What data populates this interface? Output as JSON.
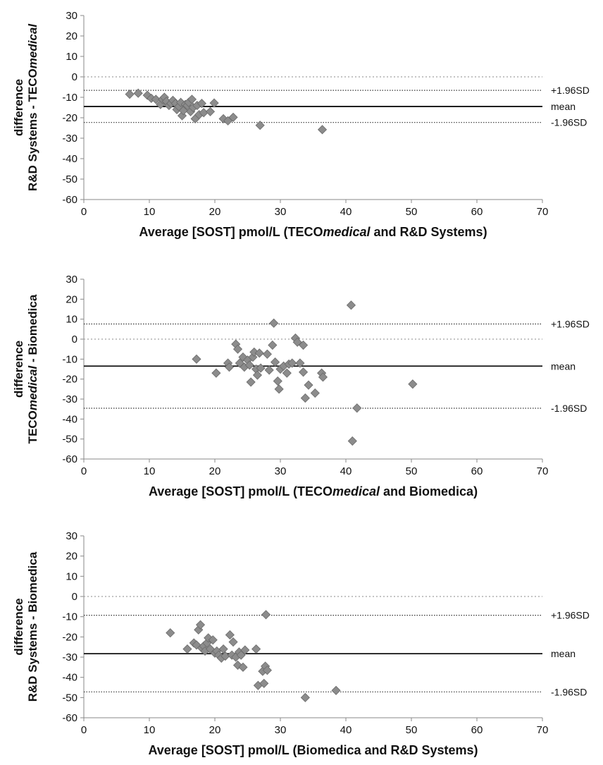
{
  "chart_data": [
    {
      "type": "scatter",
      "xlabel": {
        "runs": [
          {
            "text": "Average [SOST] pmol/L (TECO",
            "italic": false
          },
          {
            "text": "medical",
            "italic": true
          },
          {
            "text": " and R&D Systems)",
            "italic": false
          }
        ]
      },
      "ylabel_line1": "difference",
      "ylabel_line2": {
        "runs": [
          {
            "text": "R&D Systems - TECO",
            "italic": false
          },
          {
            "text": "medical",
            "italic": true
          }
        ]
      },
      "xlim": [
        0,
        70
      ],
      "ylim": [
        -60,
        30
      ],
      "xticks": [
        0,
        10,
        20,
        30,
        40,
        50,
        60,
        70
      ],
      "yticks": [
        -60,
        -50,
        -40,
        -30,
        -20,
        -10,
        0,
        10,
        20,
        30
      ],
      "marker_color": "#8c8c8c",
      "lines": [
        {
          "label": "",
          "y": 0,
          "style": "zero",
          "color": "#b0b0b0"
        },
        {
          "label": "+1.96SD",
          "y": -6.6,
          "style": "dotted",
          "color": "#333333"
        },
        {
          "label": "mean",
          "y": -14.5,
          "style": "solid",
          "color": "#111111"
        },
        {
          "label": "-1.96SD",
          "y": -22.3,
          "style": "dotted",
          "color": "#333333"
        }
      ],
      "points": [
        {
          "x": 7.0,
          "y": -8.5
        },
        {
          "x": 8.3,
          "y": -8.0
        },
        {
          "x": 9.7,
          "y": -9.0
        },
        {
          "x": 10.3,
          "y": -10.5
        },
        {
          "x": 11.0,
          "y": -11.0
        },
        {
          "x": 11.7,
          "y": -13.5
        },
        {
          "x": 12.0,
          "y": -11.0
        },
        {
          "x": 12.3,
          "y": -10.0
        },
        {
          "x": 12.6,
          "y": -12.0
        },
        {
          "x": 13.0,
          "y": -14.0
        },
        {
          "x": 13.3,
          "y": -13.0
        },
        {
          "x": 13.6,
          "y": -11.5
        },
        {
          "x": 14.0,
          "y": -13.0
        },
        {
          "x": 14.2,
          "y": -16.0
        },
        {
          "x": 14.5,
          "y": -14.5
        },
        {
          "x": 14.8,
          "y": -12.5
        },
        {
          "x": 15.0,
          "y": -19.0
        },
        {
          "x": 15.2,
          "y": -16.5
        },
        {
          "x": 15.5,
          "y": -13.5
        },
        {
          "x": 15.8,
          "y": -14.0
        },
        {
          "x": 16.0,
          "y": -12.5
        },
        {
          "x": 16.3,
          "y": -17.0
        },
        {
          "x": 16.5,
          "y": -11.0
        },
        {
          "x": 16.7,
          "y": -15.0
        },
        {
          "x": 17.0,
          "y": -20.5
        },
        {
          "x": 17.3,
          "y": -14.0
        },
        {
          "x": 17.6,
          "y": -18.5
        },
        {
          "x": 18.0,
          "y": -13.0
        },
        {
          "x": 18.3,
          "y": -17.5
        },
        {
          "x": 19.3,
          "y": -17.0
        },
        {
          "x": 19.9,
          "y": -12.8
        },
        {
          "x": 21.3,
          "y": -20.5
        },
        {
          "x": 22.0,
          "y": -21.5
        },
        {
          "x": 22.8,
          "y": -19.8
        },
        {
          "x": 26.9,
          "y": -23.7
        },
        {
          "x": 36.4,
          "y": -25.8
        }
      ]
    },
    {
      "type": "scatter",
      "xlabel": {
        "runs": [
          {
            "text": "Average [SOST] pmol/L (TECO",
            "italic": false
          },
          {
            "text": "medical",
            "italic": true
          },
          {
            "text": " and Biomedica)",
            "italic": false
          }
        ]
      },
      "ylabel_line1": "difference",
      "ylabel_line2": {
        "runs": [
          {
            "text": "TECO",
            "italic": false
          },
          {
            "text": "medical",
            "italic": true
          },
          {
            "text": " - Biomedica",
            "italic": false
          }
        ]
      },
      "xlim": [
        0,
        70
      ],
      "ylim": [
        -60,
        30
      ],
      "xticks": [
        0,
        10,
        20,
        30,
        40,
        50,
        60,
        70
      ],
      "yticks": [
        -60,
        -50,
        -40,
        -30,
        -20,
        -10,
        0,
        10,
        20,
        30
      ],
      "marker_color": "#8c8c8c",
      "lines": [
        {
          "label": "+1.96SD",
          "y": 7.6,
          "style": "dotted",
          "color": "#333333"
        },
        {
          "label": "",
          "y": 0,
          "style": "zero",
          "color": "#b0b0b0"
        },
        {
          "label": "mean",
          "y": -13.5,
          "style": "solid",
          "color": "#111111"
        },
        {
          "label": "-1.96SD",
          "y": -34.6,
          "style": "dotted",
          "color": "#333333"
        }
      ],
      "points": [
        {
          "x": 17.2,
          "y": -10.0
        },
        {
          "x": 20.2,
          "y": -17.0
        },
        {
          "x": 22.0,
          "y": -12.0
        },
        {
          "x": 22.2,
          "y": -14.0
        },
        {
          "x": 23.2,
          "y": -2.5
        },
        {
          "x": 23.5,
          "y": -5.0
        },
        {
          "x": 23.8,
          "y": -12.0
        },
        {
          "x": 24.3,
          "y": -9.0
        },
        {
          "x": 24.5,
          "y": -14.0
        },
        {
          "x": 25.0,
          "y": -10.5
        },
        {
          "x": 25.3,
          "y": -13.0
        },
        {
          "x": 25.5,
          "y": -21.5
        },
        {
          "x": 25.8,
          "y": -9.0
        },
        {
          "x": 26.0,
          "y": -6.5
        },
        {
          "x": 26.3,
          "y": -15.0
        },
        {
          "x": 26.5,
          "y": -18.0
        },
        {
          "x": 26.8,
          "y": -7.0
        },
        {
          "x": 27.0,
          "y": -14.5
        },
        {
          "x": 28.0,
          "y": -7.5
        },
        {
          "x": 28.3,
          "y": -15.5
        },
        {
          "x": 28.8,
          "y": -3.0
        },
        {
          "x": 29.0,
          "y": 8.0
        },
        {
          "x": 29.2,
          "y": -11.5
        },
        {
          "x": 29.6,
          "y": -21.0
        },
        {
          "x": 29.8,
          "y": -25.0
        },
        {
          "x": 30.0,
          "y": -15.0
        },
        {
          "x": 30.5,
          "y": -13.5
        },
        {
          "x": 31.0,
          "y": -17.0
        },
        {
          "x": 31.3,
          "y": -12.5
        },
        {
          "x": 31.8,
          "y": -12.0
        },
        {
          "x": 32.3,
          "y": 0.5
        },
        {
          "x": 32.6,
          "y": -1.5
        },
        {
          "x": 33.0,
          "y": -12.0
        },
        {
          "x": 33.5,
          "y": -3.0
        },
        {
          "x": 33.5,
          "y": -16.5
        },
        {
          "x": 33.8,
          "y": -29.5
        },
        {
          "x": 34.3,
          "y": -23.0
        },
        {
          "x": 35.3,
          "y": -27.0
        },
        {
          "x": 36.3,
          "y": -17.0
        },
        {
          "x": 36.5,
          "y": -19.0
        },
        {
          "x": 40.8,
          "y": 17.0
        },
        {
          "x": 41.0,
          "y": -51.0
        },
        {
          "x": 41.7,
          "y": -34.5
        },
        {
          "x": 50.2,
          "y": -22.5
        }
      ]
    },
    {
      "type": "scatter",
      "xlabel": {
        "runs": [
          {
            "text": "Average [SOST] pmol/L (Biomedica and R&D Systems)",
            "italic": false
          }
        ]
      },
      "ylabel_line1": "difference",
      "ylabel_line2": {
        "runs": [
          {
            "text": "R&D Systems - Biomedica",
            "italic": false
          }
        ]
      },
      "xlim": [
        0,
        70
      ],
      "ylim": [
        -60,
        30
      ],
      "xticks": [
        0,
        10,
        20,
        30,
        40,
        50,
        60,
        70
      ],
      "yticks": [
        -60,
        -50,
        -40,
        -30,
        -20,
        -10,
        0,
        10,
        20,
        30
      ],
      "marker_color": "#8c8c8c",
      "lines": [
        {
          "label": "",
          "y": 0,
          "style": "zero",
          "color": "#b0b0b0"
        },
        {
          "label": "+1.96SD",
          "y": -9.3,
          "style": "dotted",
          "color": "#333333"
        },
        {
          "label": "mean",
          "y": -28.3,
          "style": "solid",
          "color": "#111111"
        },
        {
          "label": "-1.96SD",
          "y": -47.2,
          "style": "dotted",
          "color": "#333333"
        }
      ],
      "points": [
        {
          "x": 13.2,
          "y": -18.0
        },
        {
          "x": 15.8,
          "y": -26.0
        },
        {
          "x": 16.8,
          "y": -23.0
        },
        {
          "x": 17.2,
          "y": -24.0
        },
        {
          "x": 17.5,
          "y": -16.5
        },
        {
          "x": 17.8,
          "y": -14.0
        },
        {
          "x": 18.0,
          "y": -25.5
        },
        {
          "x": 18.3,
          "y": -24.5
        },
        {
          "x": 18.5,
          "y": -27.0
        },
        {
          "x": 18.8,
          "y": -23.0
        },
        {
          "x": 19.0,
          "y": -20.5
        },
        {
          "x": 19.3,
          "y": -26.0
        },
        {
          "x": 19.7,
          "y": -21.5
        },
        {
          "x": 20.0,
          "y": -28.0
        },
        {
          "x": 20.3,
          "y": -27.0
        },
        {
          "x": 20.6,
          "y": -29.0
        },
        {
          "x": 21.0,
          "y": -30.5
        },
        {
          "x": 21.3,
          "y": -26.0
        },
        {
          "x": 21.6,
          "y": -29.5
        },
        {
          "x": 22.3,
          "y": -19.0
        },
        {
          "x": 22.6,
          "y": -29.0
        },
        {
          "x": 22.8,
          "y": -22.5
        },
        {
          "x": 23.2,
          "y": -30.0
        },
        {
          "x": 23.5,
          "y": -34.0
        },
        {
          "x": 23.7,
          "y": -27.5
        },
        {
          "x": 24.0,
          "y": -29.0
        },
        {
          "x": 24.3,
          "y": -35.0
        },
        {
          "x": 24.6,
          "y": -26.5
        },
        {
          "x": 26.3,
          "y": -26.0
        },
        {
          "x": 26.6,
          "y": -44.0
        },
        {
          "x": 27.3,
          "y": -37.0
        },
        {
          "x": 27.5,
          "y": -43.0
        },
        {
          "x": 27.7,
          "y": -34.5
        },
        {
          "x": 27.8,
          "y": -9.0
        },
        {
          "x": 28.0,
          "y": -36.5
        },
        {
          "x": 33.8,
          "y": -50.0
        },
        {
          "x": 38.5,
          "y": -46.5
        }
      ]
    }
  ]
}
